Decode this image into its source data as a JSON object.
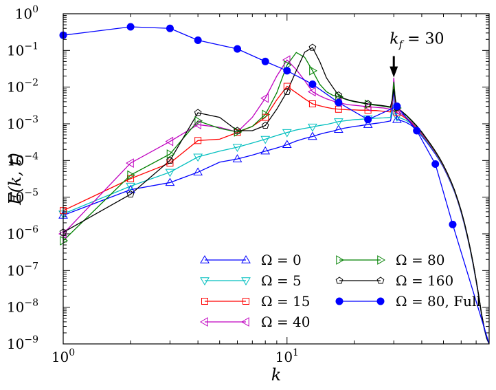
{
  "chart_data": {
    "type": "line",
    "xscale": "log",
    "yscale": "log",
    "xlim": [
      1,
      80
    ],
    "ylim": [
      1e-09,
      1
    ],
    "xlabel": "k",
    "ylabel": "E(k, t)",
    "xticks": [
      {
        "v": 1,
        "b": "10",
        "e": "0"
      },
      {
        "v": 10,
        "b": "10",
        "e": "1"
      }
    ],
    "yticks": [
      {
        "v": 1,
        "b": "10",
        "e": "0"
      },
      {
        "v": 0.1,
        "b": "10",
        "e": "−1"
      },
      {
        "v": 0.01,
        "b": "10",
        "e": "−2"
      },
      {
        "v": 0.001,
        "b": "10",
        "e": "−3"
      },
      {
        "v": 0.0001,
        "b": "10",
        "e": "−4"
      },
      {
        "v": 1e-05,
        "b": "10",
        "e": "−5"
      },
      {
        "v": 1e-06,
        "b": "10",
        "e": "−6"
      },
      {
        "v": 1e-07,
        "b": "10",
        "e": "−7"
      },
      {
        "v": 1e-08,
        "b": "10",
        "e": "−8"
      },
      {
        "v": 1e-09,
        "b": "10",
        "e": "−9"
      }
    ],
    "annotation": {
      "text": "k_f = 30",
      "label_main": "k",
      "label_sub": "f",
      "label_rest": " = 30",
      "x": 30,
      "y_tip": 0.02,
      "y_tail": 0.07
    },
    "series": [
      {
        "name": "Ω = 0",
        "color": "#0000ff",
        "marker": "triangle-up",
        "filled": false,
        "x": [
          1,
          2,
          3,
          4,
          5,
          6,
          7,
          8,
          9,
          10,
          11,
          12,
          13,
          14,
          15,
          16,
          17,
          18,
          19,
          20,
          21,
          22,
          23,
          24,
          25,
          26,
          27,
          28,
          29,
          29.5,
          30,
          30.5,
          31,
          32,
          34,
          36,
          38,
          40,
          42,
          44,
          46,
          48,
          50,
          52,
          54,
          56,
          58,
          60,
          62,
          64,
          66,
          68,
          70,
          72,
          74,
          76,
          78,
          80
        ],
        "y": [
          3.2e-06,
          1.6e-05,
          2.5e-05,
          4.8e-05,
          9e-05,
          0.00011,
          0.00014,
          0.00018,
          0.00022,
          0.00027,
          0.00034,
          0.0004,
          0.00045,
          0.00052,
          0.00058,
          0.00063,
          0.0007,
          0.00076,
          0.0008,
          0.00085,
          0.00088,
          0.00092,
          0.00095,
          0.001,
          0.00103,
          0.00106,
          0.0011,
          0.00115,
          0.0012,
          0.002,
          0.01,
          0.002,
          0.0013,
          0.00125,
          0.0011,
          0.0009,
          0.00065,
          0.00046,
          0.00032,
          0.00022,
          0.00015,
          0.0001,
          6.5e-05,
          4e-05,
          2.4e-05,
          1.4e-05,
          7.5e-06,
          3.8e-06,
          1.8e-06,
          8e-07,
          3.4e-07,
          1.35e-07,
          5e-08,
          1.8e-08,
          6e-09,
          2.6e-09,
          1.4e-09,
          1e-09
        ],
        "markers_x": [
          1,
          2,
          3,
          4,
          6,
          8,
          10,
          13,
          17,
          23,
          31
        ]
      },
      {
        "name": "Ω = 5",
        "color": "#00bfbf",
        "marker": "triangle-down",
        "filled": false,
        "x": [
          1,
          2,
          3,
          4,
          5,
          6,
          7,
          8,
          9,
          10,
          11,
          12,
          13,
          14,
          15,
          16,
          17,
          18,
          19,
          20,
          21,
          22,
          23,
          24,
          25,
          26,
          27,
          28,
          29,
          29.5,
          30,
          30.5,
          31,
          32,
          34,
          36,
          38,
          40,
          42,
          44,
          46,
          48,
          50,
          52,
          54,
          56,
          58,
          60,
          62,
          64,
          66,
          68,
          70,
          72,
          74,
          76,
          78,
          80
        ],
        "y": [
          3.5e-06,
          2e-05,
          4.8e-05,
          0.000125,
          0.00018,
          0.00023,
          0.0003,
          0.00038,
          0.00048,
          0.00058,
          0.00068,
          0.00075,
          0.00082,
          0.0009,
          0.00096,
          0.00105,
          0.00115,
          0.0012,
          0.00125,
          0.0013,
          0.00132,
          0.00135,
          0.00138,
          0.0014,
          0.00142,
          0.00144,
          0.00145,
          0.00147,
          0.0015,
          0.003,
          0.016,
          0.003,
          0.00155,
          0.00145,
          0.00125,
          0.001,
          0.0007,
          0.00049,
          0.00034,
          0.000235,
          0.00016,
          0.000105,
          6.8e-05,
          4.2e-05,
          2.5e-05,
          1.45e-05,
          7.8e-06,
          4e-06,
          1.9e-06,
          8.3e-07,
          3.5e-07,
          1.4e-07,
          5.2e-08,
          1.9e-08,
          6.2e-09,
          2.7e-09,
          1.4e-09,
          1e-09
        ],
        "markers_x": [
          1,
          2,
          3,
          4,
          6,
          8,
          10,
          13,
          17,
          23,
          31
        ]
      },
      {
        "name": "Ω = 15",
        "color": "#ff0000",
        "marker": "square",
        "filled": false,
        "x": [
          1,
          2,
          3,
          4,
          5,
          6,
          7,
          8,
          9,
          10,
          11,
          12,
          13,
          14,
          15,
          16,
          17,
          18,
          19,
          20,
          21,
          22,
          23,
          24,
          25,
          26,
          27,
          28,
          29,
          29.5,
          30,
          30.5,
          31,
          32,
          34,
          36,
          38,
          40,
          42,
          44,
          46,
          48,
          50,
          52,
          54,
          56,
          58,
          60,
          62,
          64,
          66,
          68,
          70,
          72,
          74,
          76,
          78,
          80
        ],
        "y": [
          4.3e-06,
          3.2e-05,
          8.5e-05,
          0.00035,
          0.00038,
          0.00058,
          0.00085,
          0.0015,
          0.0045,
          0.0105,
          0.007,
          0.0048,
          0.0035,
          0.0031,
          0.0028,
          0.0026,
          0.0025,
          0.00245,
          0.0024,
          0.0024,
          0.00235,
          0.00235,
          0.00235,
          0.0023,
          0.0023,
          0.00225,
          0.0022,
          0.00215,
          0.0021,
          0.0035,
          0.014,
          0.0035,
          0.002,
          0.0018,
          0.0014,
          0.00105,
          0.00075,
          0.00052,
          0.00036,
          0.000245,
          0.000165,
          0.00011,
          7e-05,
          4.3e-05,
          2.6e-05,
          1.5e-05,
          8e-06,
          4.1e-06,
          1.95e-06,
          8.5e-07,
          3.6e-07,
          1.45e-07,
          5.3e-08,
          1.9e-08,
          6.4e-09,
          2.8e-09,
          1.45e-09,
          1e-09
        ],
        "markers_x": [
          1,
          2,
          3,
          4,
          6,
          8,
          10,
          13,
          17,
          23,
          31
        ]
      },
      {
        "name": "Ω = 40",
        "color": "#bf00bf",
        "marker": "triangle-left",
        "filled": false,
        "x": [
          1,
          2,
          3,
          4,
          5,
          6,
          7,
          8,
          9,
          10,
          11,
          12,
          13,
          14,
          15,
          16,
          17,
          18,
          19,
          20,
          21,
          22,
          23,
          24,
          25,
          26,
          27,
          28,
          29,
          29.5,
          30,
          30.5,
          31,
          32,
          34,
          36,
          38,
          40,
          42,
          44,
          46,
          48,
          50,
          52,
          54,
          56,
          58,
          60,
          62,
          64,
          66,
          68,
          70,
          72,
          74,
          76,
          78,
          80
        ],
        "y": [
          1e-06,
          8.5e-05,
          0.00033,
          0.00095,
          0.0008,
          0.0006,
          0.0015,
          0.005,
          0.02,
          0.055,
          0.03,
          0.015,
          0.0075,
          0.0058,
          0.0048,
          0.0042,
          0.0038,
          0.0035,
          0.0033,
          0.0032,
          0.0031,
          0.003,
          0.0029,
          0.00285,
          0.0028,
          0.00275,
          0.0027,
          0.0026,
          0.0025,
          0.004,
          0.018,
          0.004,
          0.0023,
          0.002,
          0.0015,
          0.0011,
          0.00078,
          0.00054,
          0.00037,
          0.00025,
          0.00017,
          0.000112,
          7.2e-05,
          4.4e-05,
          2.65e-05,
          1.52e-05,
          8.2e-06,
          4.2e-06,
          2e-06,
          8.7e-07,
          3.7e-07,
          1.48e-07,
          5.4e-08,
          1.95e-08,
          6.5e-09,
          2.8e-09,
          1.45e-09,
          1e-09
        ],
        "markers_x": [
          1,
          2,
          3,
          4,
          8,
          10,
          13,
          17,
          23,
          31
        ]
      },
      {
        "name": "Ω = 80",
        "color": "#008000",
        "marker": "triangle-right",
        "filled": false,
        "x": [
          1,
          2,
          3,
          4,
          5,
          6,
          7,
          8,
          9,
          10,
          11,
          12,
          13,
          14,
          15,
          16,
          17,
          18,
          19,
          20,
          21,
          22,
          23,
          24,
          25,
          26,
          27,
          28,
          29,
          29.5,
          30,
          30.5,
          31,
          32,
          34,
          36,
          38,
          40,
          42,
          44,
          46,
          48,
          50,
          52,
          54,
          56,
          58,
          60,
          62,
          64,
          66,
          68,
          70,
          72,
          74,
          76,
          78,
          80
        ],
        "y": [
          6.5e-07,
          4e-05,
          0.00015,
          0.0012,
          0.00075,
          0.0006,
          0.00085,
          0.0018,
          0.007,
          0.04,
          0.088,
          0.065,
          0.028,
          0.012,
          0.0075,
          0.006,
          0.0055,
          0.0048,
          0.0043,
          0.004,
          0.0038,
          0.0036,
          0.0034,
          0.0033,
          0.0032,
          0.0031,
          0.003,
          0.0029,
          0.0028,
          0.0045,
          0.014,
          0.0045,
          0.0027,
          0.0023,
          0.0017,
          0.0012,
          0.00085,
          0.00058,
          0.00039,
          0.00026,
          0.000175,
          0.000115,
          7.3e-05,
          4.5e-05,
          2.7e-05,
          1.55e-05,
          8.3e-06,
          4.2e-06,
          2e-06,
          8.8e-07,
          3.7e-07,
          1.48e-07,
          5.4e-08,
          1.95e-08,
          6.5e-09,
          2.8e-09,
          1.45e-09,
          1e-09
        ],
        "markers_x": [
          1,
          2,
          3,
          4,
          6,
          8,
          10,
          13,
          17,
          23,
          31
        ]
      },
      {
        "name": "Ω = 160",
        "color": "#000000",
        "marker": "pentagon",
        "filled": false,
        "x": [
          1,
          2,
          3,
          4,
          5,
          6,
          7,
          8,
          9,
          10,
          11,
          12,
          13,
          14,
          15,
          16,
          17,
          18,
          19,
          20,
          21,
          22,
          23,
          24,
          25,
          26,
          27,
          28,
          29,
          29.5,
          30,
          30.5,
          31,
          32,
          34,
          36,
          38,
          40,
          42,
          44,
          46,
          48,
          50,
          52,
          54,
          56,
          58,
          60,
          62,
          64,
          66,
          68,
          70,
          72,
          74,
          76,
          78,
          80
        ],
        "y": [
          1.1e-06,
          1.2e-05,
          0.0001,
          0.002,
          0.0015,
          0.00065,
          0.00065,
          0.0009,
          0.0025,
          0.0075,
          0.028,
          0.09,
          0.12,
          0.05,
          0.018,
          0.01,
          0.006,
          0.0049,
          0.0044,
          0.0041,
          0.0039,
          0.0037,
          0.0035,
          0.0034,
          0.0033,
          0.0032,
          0.0031,
          0.003,
          0.0029,
          0.0045,
          0.009,
          0.0045,
          0.0028,
          0.0024,
          0.00175,
          0.00125,
          0.00088,
          0.0006,
          0.0004,
          0.00027,
          0.00018,
          0.000118,
          7.5e-05,
          4.6e-05,
          2.75e-05,
          1.58e-05,
          8.4e-06,
          4.3e-06,
          2.05e-06,
          9e-07,
          3.8e-07,
          1.5e-07,
          5.5e-08,
          2e-08,
          6.6e-09,
          2.85e-09,
          1.45e-09,
          1e-09
        ],
        "markers_x": [
          1,
          2,
          3,
          4,
          6,
          8,
          10,
          13,
          17,
          23,
          31
        ]
      },
      {
        "name": "Ω = 80, Full",
        "color": "#0000ff",
        "marker": "circle",
        "filled": true,
        "x": [
          1,
          2,
          3,
          4,
          6,
          8,
          10,
          13,
          17,
          23,
          31,
          38,
          46,
          55,
          80
        ],
        "y": [
          0.26,
          0.44,
          0.4,
          0.19,
          0.11,
          0.05,
          0.028,
          0.012,
          0.0038,
          0.0013,
          0.003,
          0.00065,
          8e-05,
          1.8e-06,
          1e-09
        ],
        "markers_x": [
          1,
          2,
          3,
          4,
          6,
          8,
          10,
          13,
          17,
          23,
          31,
          38,
          46,
          55
        ]
      }
    ],
    "legend": {
      "placement": "lower-center",
      "columns": 2,
      "order": [
        [
          0,
          1,
          2,
          3
        ],
        [
          4,
          5,
          6
        ]
      ]
    }
  }
}
